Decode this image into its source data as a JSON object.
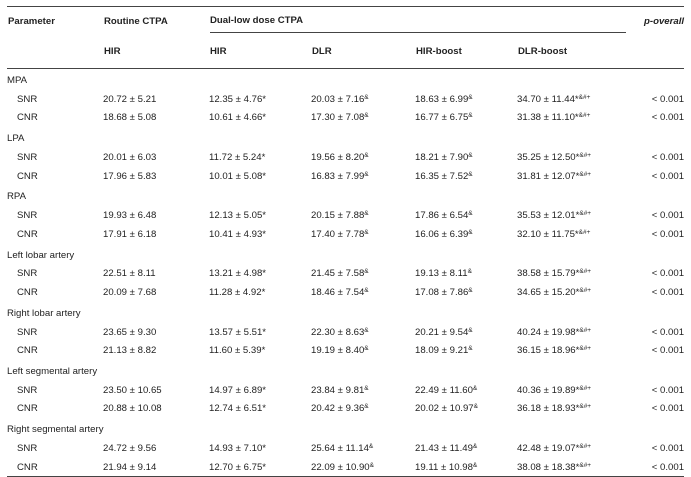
{
  "headers": {
    "parameter": "Parameter",
    "routine_group": "Routine CTPA",
    "dual_group": "Dual-low dose CTPA",
    "p_overall": "p-overall",
    "routine_hir": "HIR",
    "hir": "HIR",
    "dlr": "DLR",
    "hir_boost": "HIR-boost",
    "dlr_boost": "DLR-boost"
  },
  "groups": [
    {
      "name": "MPA",
      "rows": [
        {
          "label": "SNR",
          "routine": "20.72 ± 5.21",
          "hir": "12.35 ± 4.76*",
          "dlr": "20.03 ± 7.16",
          "dlr_sup": "&",
          "hirb": "18.63 ± 6.99",
          "hirb_sup": "&",
          "dlrb": "34.70 ± 11.44*",
          "dlrb_sup": "&#+",
          "p": "< 0.001"
        },
        {
          "label": "CNR",
          "routine": "18.68 ± 5.08",
          "hir": "10.61 ± 4.66*",
          "dlr": "17.30 ± 7.08",
          "dlr_sup": "&",
          "hirb": "16.77 ± 6.75",
          "hirb_sup": "&",
          "dlrb": "31.38 ± 11.10*",
          "dlrb_sup": "&#+",
          "p": "< 0.001"
        }
      ]
    },
    {
      "name": "LPA",
      "rows": [
        {
          "label": "SNR",
          "routine": "20.01 ± 6.03",
          "hir": "11.72 ± 5.24*",
          "dlr": "19.56 ± 8.20",
          "dlr_sup": "&",
          "hirb": "18.21 ± 7.90",
          "hirb_sup": "&",
          "dlrb": "35.25 ± 12.50*",
          "dlrb_sup": "&#+",
          "p": "< 0.001"
        },
        {
          "label": "CNR",
          "routine": "17.96 ± 5.83",
          "hir": "10.01 ± 5.08*",
          "dlr": "16.83 ± 7.99",
          "dlr_sup": "&",
          "hirb": "16.35 ± 7.52",
          "hirb_sup": "&",
          "dlrb": "31.81 ± 12.07*",
          "dlrb_sup": "&#+",
          "p": "< 0.001"
        }
      ]
    },
    {
      "name": "RPA",
      "rows": [
        {
          "label": "SNR",
          "routine": "19.93 ± 6.48",
          "hir": "12.13 ± 5.05*",
          "dlr": "20.15 ± 7.88",
          "dlr_sup": "&",
          "hirb": "17.86 ± 6.54",
          "hirb_sup": "&",
          "dlrb": "35.53 ± 12.01*",
          "dlrb_sup": "&#+",
          "p": "< 0.001"
        },
        {
          "label": "CNR",
          "routine": "17.91 ± 6.18",
          "hir": "10.41 ± 4.93*",
          "dlr": "17.40 ± 7.78",
          "dlr_sup": "&",
          "hirb": "16.06 ± 6.39",
          "hirb_sup": "&",
          "dlrb": "32.10 ± 11.75*",
          "dlrb_sup": "&#+",
          "p": "< 0.001"
        }
      ]
    },
    {
      "name": "Left lobar artery",
      "rows": [
        {
          "label": "SNR",
          "routine": "22.51 ± 8.11",
          "hir": "13.21 ± 4.98*",
          "dlr": "21.45 ± 7.58",
          "dlr_sup": "&",
          "hirb": "19.13 ± 8.11",
          "hirb_sup": "&",
          "dlrb": "38.58 ± 15.79*",
          "dlrb_sup": "&#+",
          "p": "< 0.001"
        },
        {
          "label": "CNR",
          "routine": "20.09 ± 7.68",
          "hir": "11.28 ± 4.92*",
          "dlr": "18.46 ± 7.54",
          "dlr_sup": "&",
          "hirb": "17.08 ± 7.86",
          "hirb_sup": "&",
          "dlrb": "34.65 ± 15.20*",
          "dlrb_sup": "&#+",
          "p": "< 0.001"
        }
      ]
    },
    {
      "name": "Right lobar artery",
      "rows": [
        {
          "label": "SNR",
          "routine": "23.65 ± 9.30",
          "hir": "13.57 ± 5.51*",
          "dlr": "22.30 ± 8.63",
          "dlr_sup": "&",
          "hirb": "20.21 ± 9.54",
          "hirb_sup": "&",
          "dlrb": "40.24 ± 19.98*",
          "dlrb_sup": "&#+",
          "p": "< 0.001"
        },
        {
          "label": "CNR",
          "routine": "21.13 ± 8.82",
          "hir": "11.60 ± 5.39*",
          "dlr": "19.19 ± 8.40",
          "dlr_sup": "&",
          "hirb": "18.09 ± 9.21",
          "hirb_sup": "&",
          "dlrb": "36.15 ± 18.96*",
          "dlrb_sup": "&#+",
          "p": "< 0.001"
        }
      ]
    },
    {
      "name": "Left segmental artery",
      "rows": [
        {
          "label": "SNR",
          "routine": "23.50 ± 10.65",
          "hir": "14.97 ± 6.89*",
          "dlr": "23.84 ± 9.81",
          "dlr_sup": "&",
          "hirb": "22.49 ± 11.60",
          "hirb_sup": "&",
          "dlrb": "40.36 ± 19.89*",
          "dlrb_sup": "&#+",
          "p": "< 0.001"
        },
        {
          "label": "CNR",
          "routine": "20.88 ± 10.08",
          "hir": "12.74 ± 6.51*",
          "dlr": "20.42 ± 9.36",
          "dlr_sup": "&",
          "hirb": "20.02 ± 10.97",
          "hirb_sup": "&",
          "dlrb": "36.18 ± 18.93*",
          "dlrb_sup": "&#+",
          "p": "< 0.001"
        }
      ]
    },
    {
      "name": "Right segmental artery",
      "rows": [
        {
          "label": "SNR",
          "routine": "24.72 ± 9.56",
          "hir": "14.93 ± 7.10*",
          "dlr": "25.64 ± 11.14",
          "dlr_sup": "&",
          "hirb": "21.43 ± 11.49",
          "hirb_sup": "&",
          "dlrb": "42.48 ± 19.07*",
          "dlrb_sup": "&#+",
          "p": "< 0.001"
        },
        {
          "label": "CNR",
          "routine": "21.94 ± 9.14",
          "hir": "12.70 ± 6.75*",
          "dlr": "22.09 ± 10.90",
          "dlr_sup": "&",
          "hirb": "19.11 ± 10.98",
          "hirb_sup": "&",
          "dlrb": "38.08 ± 18.38*",
          "dlrb_sup": "&#+",
          "p": "< 0.001"
        }
      ]
    }
  ]
}
